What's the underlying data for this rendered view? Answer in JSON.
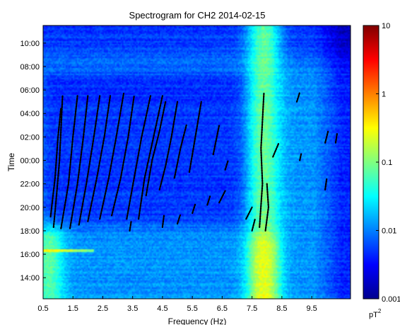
{
  "chart_data": {
    "type": "heatmap",
    "title": "Spectrogram for CH2 2014-02-15",
    "xlabel": "Frequency (Hz)",
    "ylabel": "Time",
    "xlim": [
      0.5,
      10.8
    ],
    "x_ticks": [
      "0.5",
      "1.5",
      "2.5",
      "3.5",
      "4.5",
      "5.5",
      "6.5",
      "7.5",
      "8.5",
      "9.5"
    ],
    "x_tick_values": [
      0.5,
      1.5,
      2.5,
      3.5,
      4.5,
      5.5,
      6.5,
      7.5,
      8.5,
      9.5
    ],
    "y_ticks": [
      "10:00",
      "08:00",
      "06:00",
      "04:00",
      "02:00",
      "00:00",
      "22:00",
      "20:00",
      "18:00",
      "16:00",
      "14:00"
    ],
    "y_tick_hours": [
      34,
      32,
      30,
      28,
      26,
      24,
      22,
      20,
      18,
      16,
      14
    ],
    "ylim_hours": [
      12.2,
      35.5
    ],
    "colorbar": {
      "scale": "log",
      "range": [
        0.001,
        10
      ],
      "ticks": [
        "10",
        "1",
        "0.1",
        "0.01",
        "0.001"
      ],
      "tick_values": [
        10,
        1,
        0.1,
        0.01,
        0.001
      ],
      "unit_base": "pT",
      "unit_exp": "2",
      "colormap": "jet"
    },
    "background_level": 0.012,
    "bright_bands": [
      {
        "freq": 7.9,
        "width": 0.55,
        "level": 0.08,
        "hours": [
          12.2,
          35.5
        ]
      },
      {
        "freq": 7.9,
        "width": 0.45,
        "level": 0.25,
        "hours": [
          12.5,
          16.5
        ]
      },
      {
        "freq": 0.7,
        "width": 0.5,
        "level": 0.07,
        "hours": [
          13.0,
          17.0
        ]
      }
    ],
    "dark_region": {
      "freq": [
        0.9,
        7.0
      ],
      "hours": [
        19.5,
        30.5
      ],
      "level": 0.005
    },
    "line_markers": [
      {
        "freq": 0.7,
        "hour": 16.3,
        "level": 0.4
      }
    ],
    "tracks": [
      {
        "x": [
          0.85,
          0.95,
          1.05,
          1.15
        ],
        "h": [
          18.3,
          21.0,
          24.0,
          29.5
        ]
      },
      {
        "x": [
          0.75,
          0.9,
          1.0,
          1.1
        ],
        "h": [
          19.2,
          22.5,
          26.0,
          28.5
        ]
      },
      {
        "x": [
          1.1,
          1.35,
          1.5,
          1.65
        ],
        "h": [
          18.2,
          22.0,
          26.0,
          29.5
        ]
      },
      {
        "x": [
          1.4,
          1.65,
          1.85,
          2.0
        ],
        "h": [
          18.2,
          22.0,
          26.0,
          29.5
        ]
      },
      {
        "x": [
          1.7,
          1.95,
          2.2,
          2.4
        ],
        "h": [
          18.5,
          22.0,
          26.0,
          29.5
        ]
      },
      {
        "x": [
          2.0,
          2.3,
          2.55,
          2.75
        ],
        "h": [
          18.8,
          22.5,
          26.0,
          29.5
        ]
      },
      {
        "x": [
          2.4,
          2.7,
          2.95,
          3.2
        ],
        "h": [
          19.0,
          22.5,
          26.0,
          29.7
        ]
      },
      {
        "x": [
          2.8,
          3.1,
          3.35,
          3.55
        ],
        "h": [
          19.3,
          22.5,
          26.0,
          29.5
        ]
      },
      {
        "x": [
          3.3,
          3.55,
          3.8,
          4.1
        ],
        "h": [
          19.0,
          22.5,
          26.0,
          29.5
        ]
      },
      {
        "x": [
          3.7,
          3.9,
          4.2,
          4.5
        ],
        "h": [
          19.0,
          22.5,
          26.0,
          29.5
        ]
      },
      {
        "x": [
          3.95,
          4.15,
          4.4,
          4.6
        ],
        "h": [
          21.0,
          24.0,
          26.5,
          29.0
        ]
      },
      {
        "x": [
          4.4,
          4.6,
          4.8,
          5.0
        ],
        "h": [
          21.5,
          23.5,
          26.0,
          29.0
        ]
      },
      {
        "x": [
          4.9,
          5.1,
          5.3
        ],
        "h": [
          22.5,
          25.0,
          27.0
        ]
      },
      {
        "x": [
          5.4,
          5.6,
          5.8
        ],
        "h": [
          23.0,
          26.0,
          29.0
        ]
      },
      {
        "x": [
          6.2,
          6.4
        ],
        "h": [
          24.5,
          27.0
        ]
      },
      {
        "x": [
          3.4,
          3.45
        ],
        "h": [
          18.0,
          18.8
        ]
      },
      {
        "x": [
          4.5,
          4.55
        ],
        "h": [
          18.3,
          19.3
        ]
      },
      {
        "x": [
          5.0,
          5.1
        ],
        "h": [
          18.6,
          19.4
        ]
      },
      {
        "x": [
          5.5,
          5.6
        ],
        "h": [
          19.5,
          20.3
        ]
      },
      {
        "x": [
          6.0,
          6.1
        ],
        "h": [
          20.2,
          21.0
        ]
      },
      {
        "x": [
          6.4,
          6.6
        ],
        "h": [
          20.4,
          21.4
        ]
      },
      {
        "x": [
          6.6,
          6.7
        ],
        "h": [
          23.2,
          24.0
        ]
      },
      {
        "x": [
          7.3,
          7.5
        ],
        "h": [
          19.0,
          20.0
        ]
      },
      {
        "x": [
          7.5,
          7.6
        ],
        "h": [
          18.0,
          19.0
        ]
      },
      {
        "x": [
          7.75,
          7.85,
          7.8,
          7.9
        ],
        "h": [
          18.3,
          22.0,
          25.0,
          29.8
        ]
      },
      {
        "x": [
          7.95,
          8.05,
          8.0
        ],
        "h": [
          18.0,
          20.0,
          22.0
        ]
      },
      {
        "x": [
          8.2,
          8.4
        ],
        "h": [
          24.3,
          25.5
        ]
      },
      {
        "x": [
          9.0,
          9.1
        ],
        "h": [
          29.0,
          29.8
        ]
      },
      {
        "x": [
          9.1,
          9.15
        ],
        "h": [
          24.0,
          24.6
        ]
      },
      {
        "x": [
          9.95,
          10.0
        ],
        "h": [
          21.5,
          22.4
        ]
      },
      {
        "x": [
          9.95,
          10.05
        ],
        "h": [
          25.5,
          26.5
        ]
      },
      {
        "x": [
          10.3,
          10.35
        ],
        "h": [
          25.5,
          26.3
        ]
      }
    ]
  }
}
